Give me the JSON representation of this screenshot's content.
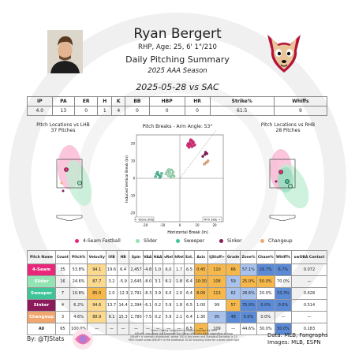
{
  "header": {
    "name": "Ryan Bergert",
    "bio": "RHP, Age: 25, 6' 1\"/210",
    "title": "Daily Pitching Summary",
    "season": "2025 AAA Season",
    "game_line": "2025-05-28 vs SAC"
  },
  "summary": {
    "headers": [
      "IP",
      "PA",
      "ER",
      "H",
      "K",
      "BB",
      "HBP",
      "HR",
      "Strike%",
      "Whiffs"
    ],
    "values": [
      "4.0",
      "13",
      "0",
      "1",
      "4",
      "0",
      "0",
      "0",
      "61.5",
      "9"
    ]
  },
  "panels": {
    "lhb_title": "Pitch Locations vs LHB",
    "lhb_sub": "37 Pitches",
    "breaks_title": "Pitch Breaks - Arm Angle: 53°",
    "rhb_title": "Pitch Locations vs RHB",
    "rhb_sub": "28 Pitches",
    "breaks_note_left": "← Glove Side",
    "breaks_note_right": "Arm Side →"
  },
  "legend": [
    {
      "name": "4-Seam Fastball",
      "color": "#e8267a"
    },
    {
      "name": "Slider",
      "color": "#93e3b3"
    },
    {
      "name": "Sweeper",
      "color": "#3fc49a"
    },
    {
      "name": "Sinker",
      "color": "#8b1a5b"
    },
    {
      "name": "Changeup",
      "color": "#f2a66f"
    }
  ],
  "table": {
    "headers": [
      "Pitch Name",
      "Count",
      "Pitch%",
      "Velocity",
      "iVB",
      "HB",
      "Spin",
      "VAA",
      "HAA",
      "vRel",
      "hRel",
      "Ext.",
      "Axis",
      "tjStuff+",
      "Grade",
      "Zone%",
      "Chase%",
      "Whiff%",
      "xwOBA Contact"
    ],
    "rows": [
      {
        "name": "4-Seam",
        "color": "#e8267a",
        "cells": [
          "35",
          "53.8%",
          "94.1",
          "19.6",
          "6.4",
          "2,457",
          "-4.8",
          "1.0",
          "6.0",
          "1.7",
          "6.5",
          "0:45",
          "110",
          "66",
          "57.1%",
          "26.7%",
          "6.7%",
          "0.072"
        ]
      },
      {
        "name": "Slider",
        "color": "#93e3b3",
        "cells": [
          "16",
          "24.6%",
          "87.7",
          "3.2",
          "-5.9",
          "2,645",
          "-8.0",
          "3.1",
          "6.1",
          "1.8",
          "6.4",
          "10:30",
          "108",
          "59",
          "25.0%",
          "50.0%",
          "70.0%",
          "—"
        ]
      },
      {
        "name": "Sweeper",
        "color": "#3fc49a",
        "cells": [
          "7",
          "10.8%",
          "85.0",
          "2.0",
          "-12.3",
          "2,791",
          "-8.3",
          "3.9",
          "6.0",
          "2.0",
          "6.4",
          "8:00",
          "113",
          "62",
          "28.6%",
          "20.0%",
          "33.3%",
          "0.628"
        ]
      },
      {
        "name": "Sinker",
        "color": "#8b1a5b",
        "cells": [
          "4",
          "6.2%",
          "94.6",
          "13.7",
          "14.4",
          "2,394",
          "-6.1",
          "0.2",
          "5.9",
          "1.8",
          "6.5",
          "1:00",
          "99",
          "57",
          "75.0%",
          "0.0%",
          "0.0%",
          "0.514"
        ]
      },
      {
        "name": "Changeup",
        "color": "#f2a66f",
        "cells": [
          "3",
          "4.6%",
          "88.9",
          "9.1",
          "15.3",
          "1,780",
          "-7.5",
          "0.2",
          "5.9",
          "2.1",
          "6.4",
          "1:30",
          "95",
          "48",
          "0.0%",
          "0.0%",
          "—",
          "—"
        ]
      },
      {
        "name": "All",
        "color": "#ffffff",
        "cells": [
          "65",
          "100.0%",
          "—",
          "—",
          "—",
          "—",
          "—",
          "—",
          "—",
          "—",
          "6.5",
          "—",
          "109",
          "—",
          "44.6%",
          "30.0%",
          "30.0%",
          "0.183"
        ]
      }
    ]
  },
  "footer": {
    "credit": "By: @TJStats",
    "source_line1": "Data: MLB, Fangraphs",
    "source_line2": "Images: MLB, ESPN",
    "note_lines": [
      "Colour Coding Compares to League Average By Pitch",
      "tjStuff+ calculates the Expected Run Value (xRV) of a pitch regardless of type",
      "tjStuff+ is normally distributed, where 100 is the mean and Standard Deviation is 10",
      "Pitch Grade scales tjStuff+ to the traditional 20-80 Scouting Scale for a given pitch type"
    ]
  },
  "chart_data": {
    "type": "scatter",
    "title": "Pitch Breaks - Arm Angle: 53°",
    "xlabel": "Horizontal Break (in)",
    "ylabel": "Induced Vertical Break (in)",
    "xlim": [
      -25,
      25
    ],
    "ylim": [
      -25,
      25
    ],
    "x_ticks": [
      -20,
      -10,
      0,
      10,
      20
    ],
    "y_ticks": [
      -20,
      -10,
      0,
      10,
      20
    ],
    "series": [
      {
        "name": "4-Seam Fastball",
        "color": "#e8267a",
        "x": [
          6.4,
          5.0,
          7.5,
          6.0,
          8.2,
          4.8,
          7.0,
          5.6,
          6.9,
          7.8,
          5.3,
          6.2,
          8.6,
          4.4,
          6.6
        ],
        "y": [
          19.6,
          18.5,
          20.4,
          21.2,
          19.0,
          20.0,
          18.2,
          19.8,
          21.8,
          20.9,
          17.8,
          22.2,
          19.4,
          19.0,
          18.8
        ]
      },
      {
        "name": "Slider",
        "color": "#93e3b3",
        "x": [
          -5.9,
          -4.5,
          -7.2,
          -6.6,
          -3.8,
          -5.2,
          -8.0,
          -4.9,
          -6.4,
          -3.4
        ],
        "y": [
          3.2,
          2.2,
          4.0,
          1.6,
          3.6,
          0.8,
          2.6,
          4.8,
          5.0,
          1.2
        ]
      },
      {
        "name": "Sweeper",
        "color": "#3fc49a",
        "x": [
          -12.3,
          -11.0,
          -13.4,
          -12.8,
          -10.5,
          -14.0,
          -11.6
        ],
        "y": [
          2.0,
          1.2,
          2.6,
          3.4,
          2.8,
          1.0,
          0.4
        ]
      },
      {
        "name": "Sinker",
        "color": "#8b1a5b",
        "x": [
          14.4,
          13.2,
          15.6,
          14.8
        ],
        "y": [
          13.7,
          12.6,
          14.2,
          15.0
        ]
      },
      {
        "name": "Changeup",
        "color": "#f2a66f",
        "x": [
          15.3,
          14.1,
          16.2
        ],
        "y": [
          9.1,
          8.2,
          10.0
        ]
      }
    ]
  }
}
